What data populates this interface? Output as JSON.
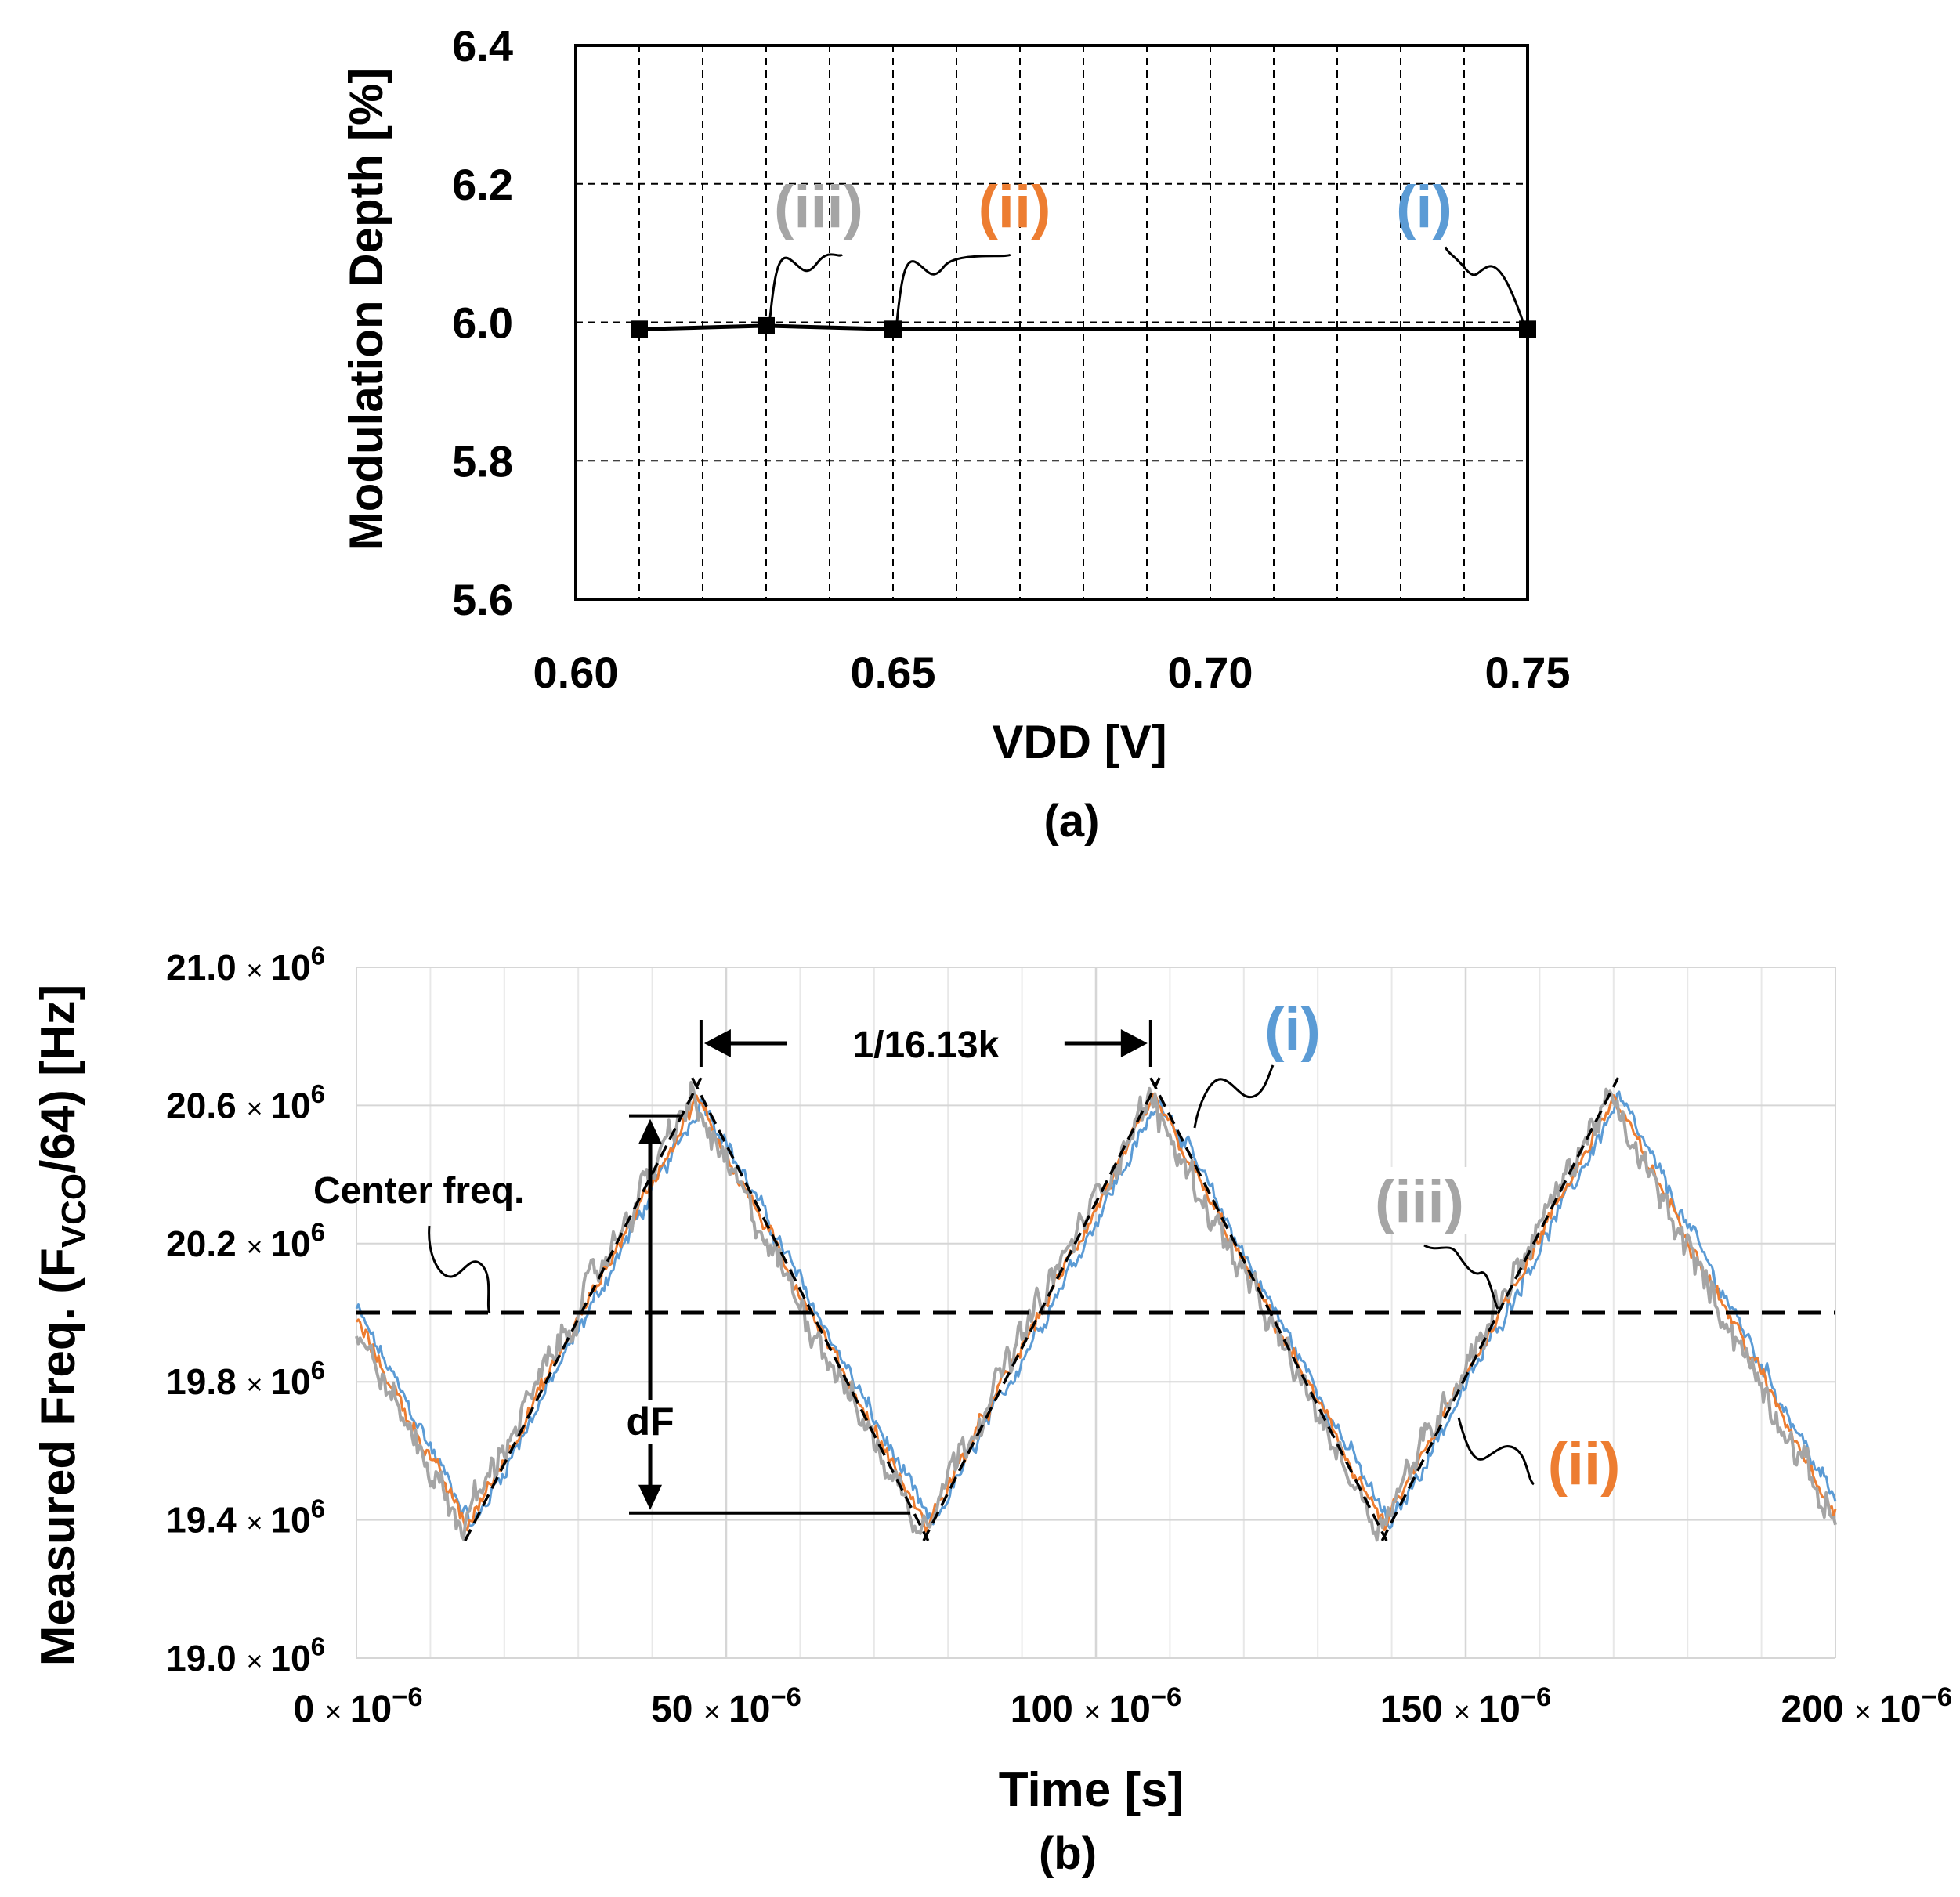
{
  "chart_data": [
    {
      "panel": "(a)",
      "type": "line",
      "xlabel": "VDD [V]",
      "ylabel": "Modulation Depth [%]",
      "xlim": [
        0.6,
        0.75
      ],
      "ylim": [
        5.6,
        6.4
      ],
      "xticks": [
        0.6,
        0.65,
        0.7,
        0.75
      ],
      "xtick_labels": [
        "0.60",
        "0.65",
        "0.70",
        "0.75"
      ],
      "yticks": [
        5.6,
        5.8,
        6.0,
        6.2,
        6.4
      ],
      "ytick_labels": [
        "5.6",
        "5.8",
        "6.0",
        "6.2",
        "6.4"
      ],
      "x_minor_step": 0.01,
      "grid": true,
      "series": [
        {
          "x": [
            0.61,
            0.63,
            0.65,
            0.75
          ],
          "y": [
            5.99,
            5.995,
            5.99,
            5.99
          ]
        }
      ],
      "annotations": [
        {
          "text": "(iii)",
          "color": "#a5a5a5",
          "target_x": 0.63,
          "target_y": 5.995
        },
        {
          "text": "(ii)",
          "color": "#ed7d31",
          "target_x": 0.65,
          "target_y": 5.99
        },
        {
          "text": "(i)",
          "color": "#5b9bd5",
          "target_x": 0.75,
          "target_y": 5.99
        }
      ]
    },
    {
      "panel": "(b)",
      "type": "line",
      "xlabel": "Time [s]",
      "ylabel_main": "Measured Freq. (F",
      "ylabel_sub": "VCO",
      "ylabel_tail": "/64) [Hz]",
      "xlim": [
        0,
        200
      ],
      "ylim": [
        19.0,
        21.0
      ],
      "xtick_values": [
        0,
        50,
        100,
        150,
        200
      ],
      "xtick_mantissas": [
        "0",
        "50",
        "100",
        "150",
        "200"
      ],
      "ytick_values": [
        19.0,
        19.4,
        19.8,
        20.2,
        20.6,
        21.0
      ],
      "ytick_mantissas": [
        "19.0",
        "19.4",
        "19.8",
        "20.2",
        "20.6",
        "21.0"
      ],
      "times_sign": "×",
      "exp_base": "10",
      "x_exponent": "−6",
      "y_exponent": "6",
      "x_minor_step": 10,
      "grid": true,
      "center_freq": 20.0,
      "modulation": {
        "period_us": 62,
        "first_min_us": 15,
        "first_max_us": 46,
        "min_freq": 19.38,
        "max_freq": 20.62
      },
      "series": [
        {
          "name": "(i)",
          "color": "#5b9bd5",
          "offset_us": 0.8,
          "noise": 0.035
        },
        {
          "name": "(ii)",
          "color": "#ed7d31",
          "offset_us": 0.0,
          "noise": 0.03
        },
        {
          "name": "(iii)",
          "color": "#a5a5a5",
          "offset_us": -0.8,
          "noise": 0.06
        }
      ],
      "annotations": {
        "center_label": "Center freq.",
        "period_label": "1/16.13k",
        "df_label": "dF",
        "label_i": "(i)",
        "label_ii": "(ii)",
        "label_iii": "(iii)",
        "color_i": "#5b9bd5",
        "color_ii": "#ed7d31",
        "color_iii": "#a5a5a5"
      }
    }
  ],
  "captions": {
    "a": "(a)",
    "b": "(b)"
  }
}
